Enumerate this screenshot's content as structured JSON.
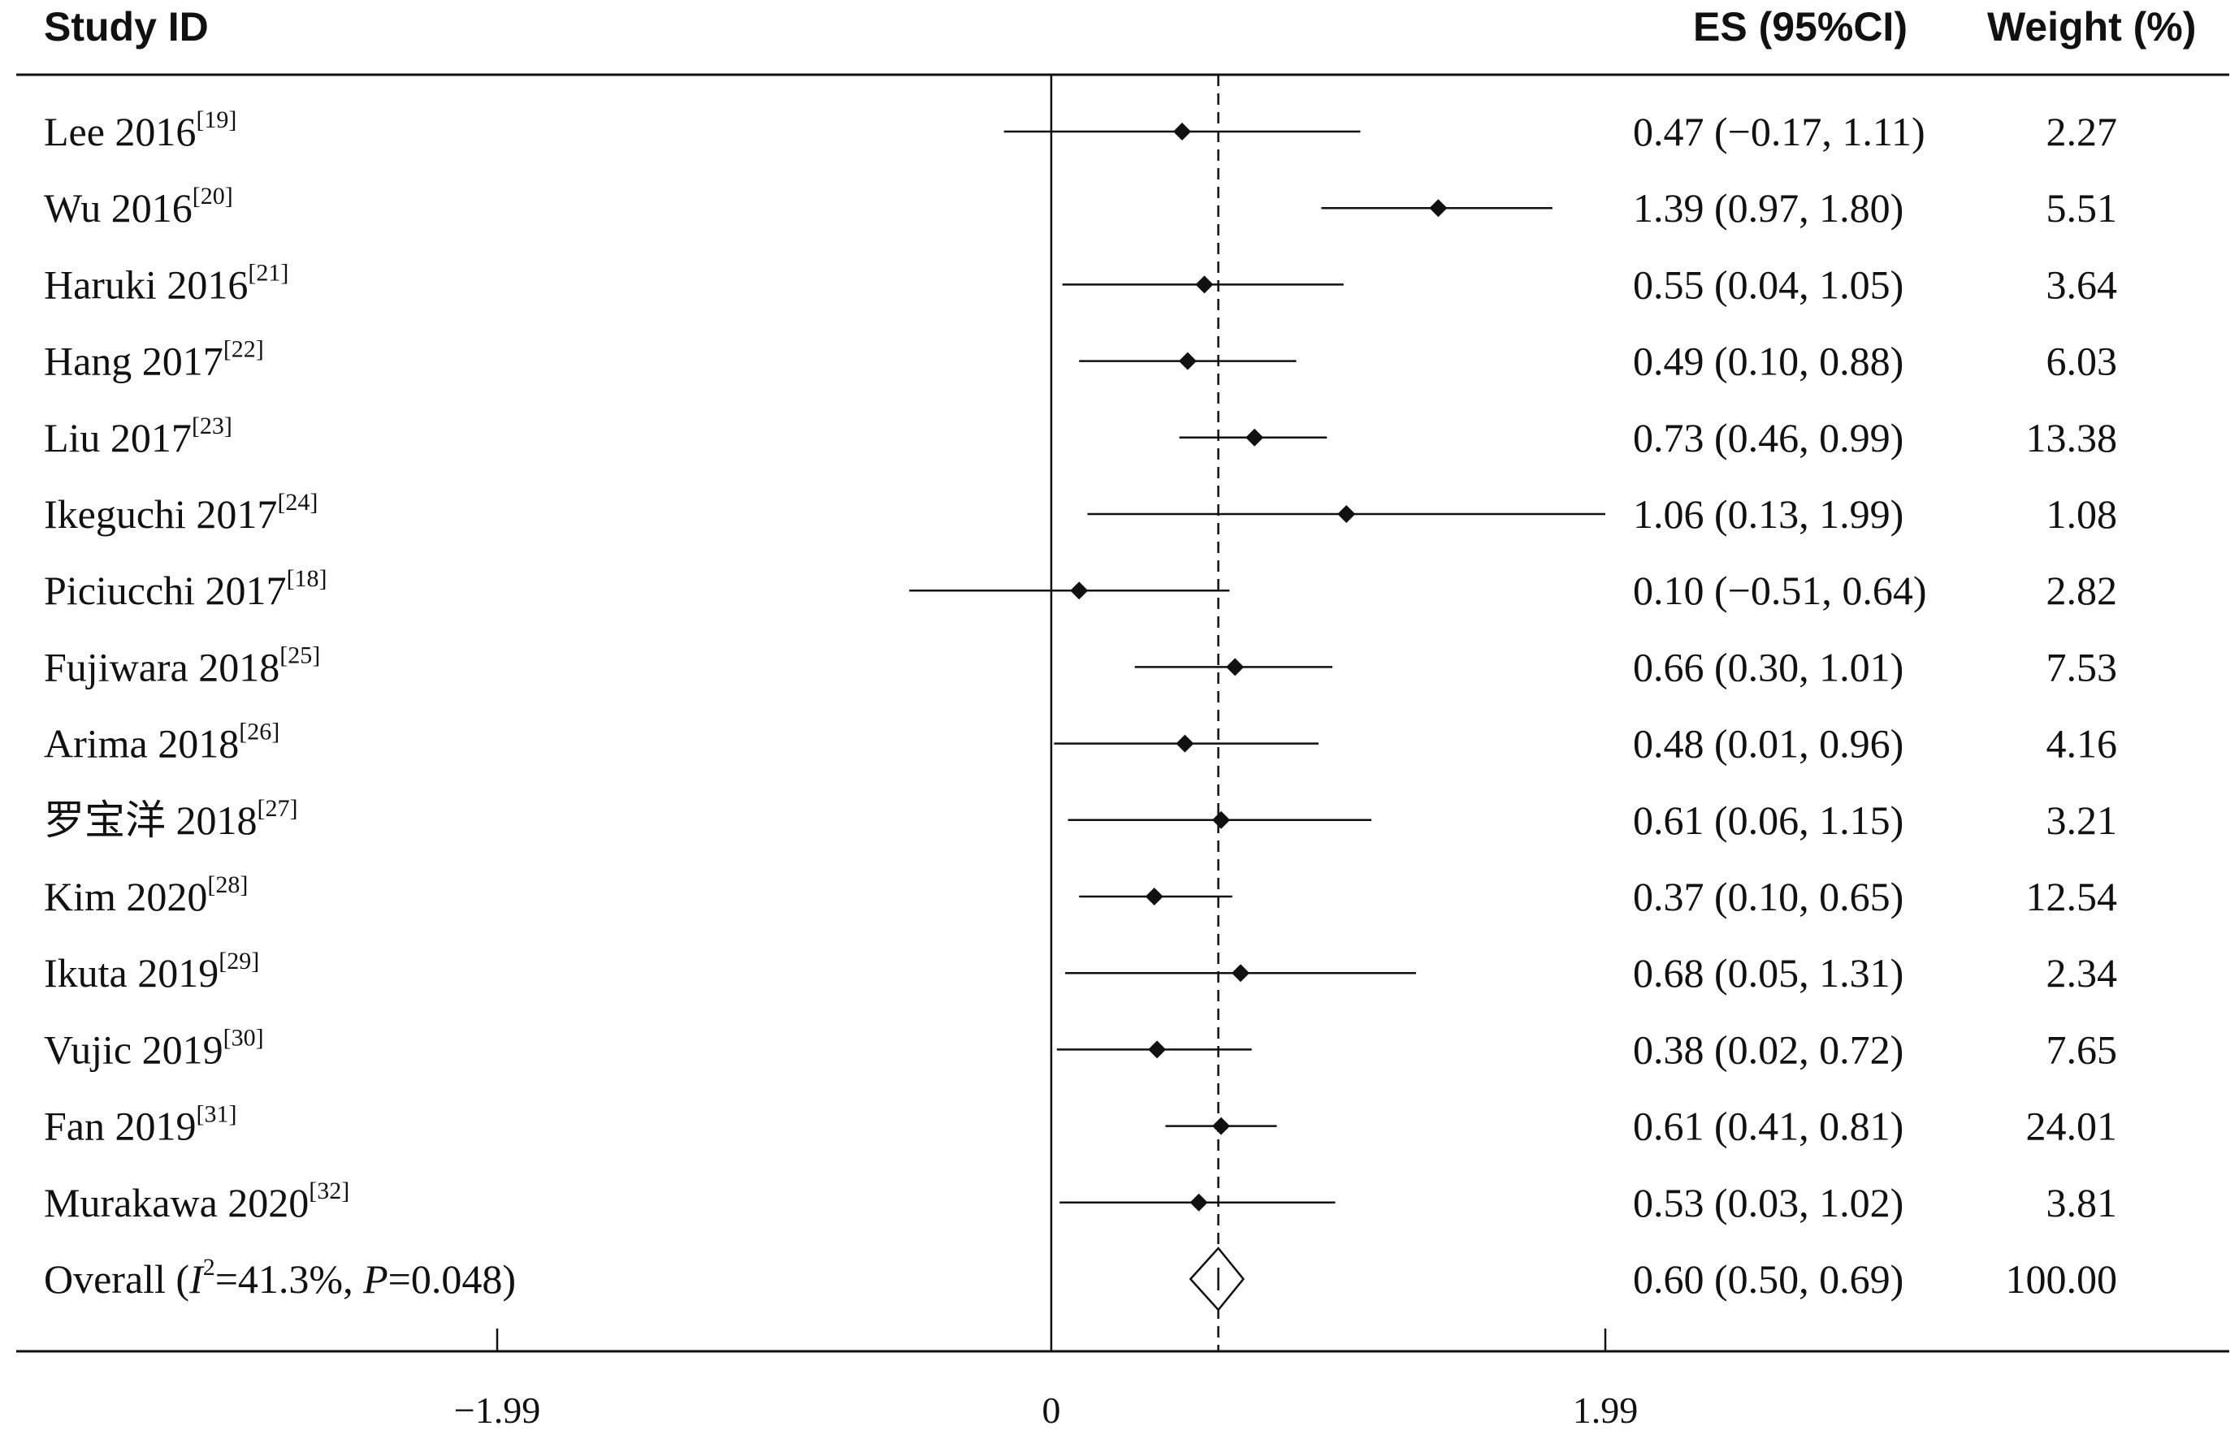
{
  "headers": {
    "study": "Study ID",
    "es": "ES (95%CI)",
    "weight": "Weight (%)"
  },
  "chart_data": {
    "type": "forest",
    "x_ticks": [
      {
        "value": -1.99,
        "label": "−1.99"
      },
      {
        "value": 0,
        "label": "0"
      },
      {
        "value": 1.99,
        "label": "1.99"
      }
    ],
    "null_line": 0,
    "pooled_line": 0.6,
    "studies": [
      {
        "name": "Lee 2016",
        "ref": "[19]",
        "es": 0.47,
        "lo": -0.17,
        "hi": 1.11,
        "es_text": "0.47 (−0.17, 1.11)",
        "weight": "2.27"
      },
      {
        "name": "Wu 2016",
        "ref": "[20]",
        "es": 1.39,
        "lo": 0.97,
        "hi": 1.8,
        "es_text": "1.39 (0.97, 1.80)",
        "weight": "5.51"
      },
      {
        "name": "Haruki 2016",
        "ref": "[21]",
        "es": 0.55,
        "lo": 0.04,
        "hi": 1.05,
        "es_text": "0.55 (0.04, 1.05)",
        "weight": "3.64"
      },
      {
        "name": "Hang 2017",
        "ref": "[22]",
        "es": 0.49,
        "lo": 0.1,
        "hi": 0.88,
        "es_text": "0.49 (0.10, 0.88)",
        "weight": "6.03"
      },
      {
        "name": "Liu 2017",
        "ref": "[23]",
        "es": 0.73,
        "lo": 0.46,
        "hi": 0.99,
        "es_text": "0.73 (0.46, 0.99)",
        "weight": "13.38"
      },
      {
        "name": "Ikeguchi 2017",
        "ref": "[24]",
        "es": 1.06,
        "lo": 0.13,
        "hi": 1.99,
        "es_text": "1.06 (0.13, 1.99)",
        "weight": "1.08"
      },
      {
        "name": "Piciucchi 2017",
        "ref": "[18]",
        "es": 0.1,
        "lo": -0.51,
        "hi": 0.64,
        "es_text": "0.10 (−0.51, 0.64)",
        "weight": "2.82"
      },
      {
        "name": "Fujiwara 2018",
        "ref": "[25]",
        "es": 0.66,
        "lo": 0.3,
        "hi": 1.01,
        "es_text": "0.66 (0.30, 1.01)",
        "weight": "7.53"
      },
      {
        "name": "Arima 2018",
        "ref": "[26]",
        "es": 0.48,
        "lo": 0.01,
        "hi": 0.96,
        "es_text": "0.48 (0.01, 0.96)",
        "weight": "4.16"
      },
      {
        "name": "罗宝洋 2018",
        "ref": "[27]",
        "es": 0.61,
        "lo": 0.06,
        "hi": 1.15,
        "es_text": "0.61 (0.06, 1.15)",
        "weight": "3.21"
      },
      {
        "name": "Kim 2020",
        "ref": "[28]",
        "es": 0.37,
        "lo": 0.1,
        "hi": 0.65,
        "es_text": "0.37 (0.10, 0.65)",
        "weight": "12.54"
      },
      {
        "name": "Ikuta 2019",
        "ref": "[29]",
        "es": 0.68,
        "lo": 0.05,
        "hi": 1.31,
        "es_text": "0.68 (0.05, 1.31)",
        "weight": "2.34"
      },
      {
        "name": "Vujic 2019",
        "ref": "[30]",
        "es": 0.38,
        "lo": 0.02,
        "hi": 0.72,
        "es_text": "0.38 (0.02, 0.72)",
        "weight": "7.65"
      },
      {
        "name": "Fan 2019",
        "ref": "[31]",
        "es": 0.61,
        "lo": 0.41,
        "hi": 0.81,
        "es_text": "0.61 (0.41, 0.81)",
        "weight": "24.01"
      },
      {
        "name": "Murakawa 2020",
        "ref": "[32]",
        "es": 0.53,
        "lo": 0.03,
        "hi": 1.02,
        "es_text": "0.53 (0.03, 1.02)",
        "weight": "3.81"
      }
    ],
    "overall": {
      "label_prefix": "Overall  (",
      "i2_symbol": "I",
      "i2_sup": "2",
      "i2_value": "=41.3%, ",
      "p_symbol": "P",
      "p_value": "=0.048)",
      "es": 0.6,
      "lo": 0.5,
      "hi": 0.69,
      "es_text": "0.60 (0.50, 0.69)",
      "weight": "100.00"
    }
  }
}
